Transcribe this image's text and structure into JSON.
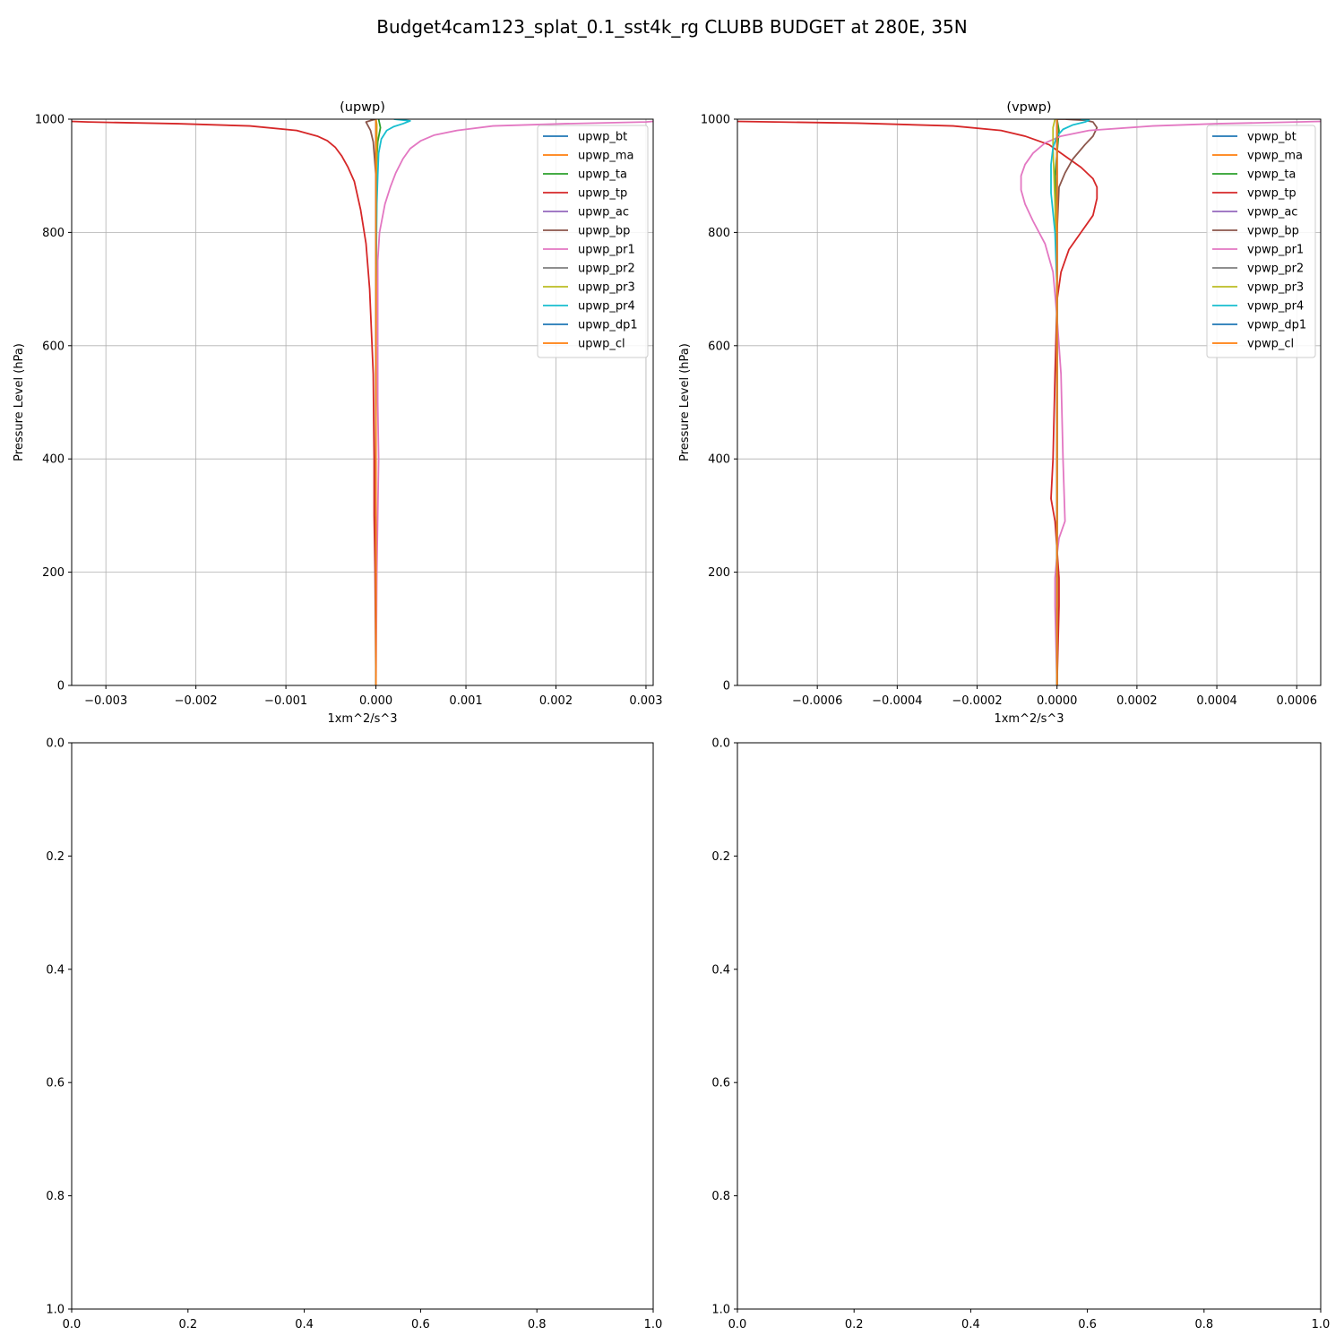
{
  "figure_title": "Budget4cam123_splat_0.1_sst4k_rg CLUBB BUDGET at 280E, 35N",
  "chart_data": [
    {
      "type": "line",
      "title": "(upwp)",
      "xlabel": "1xm^2/s^3",
      "ylabel": "Pressure Level (hPa)",
      "xlim": [
        -0.00338,
        0.00308
      ],
      "ylim": [
        1000,
        0
      ],
      "xticks": [
        -0.003,
        -0.002,
        -0.001,
        0.0,
        0.001,
        0.002,
        0.003
      ],
      "xtick_labels": [
        "−0.003",
        "−0.002",
        "−0.001",
        "0.000",
        "0.001",
        "0.002",
        "0.003"
      ],
      "yticks": [
        0,
        200,
        400,
        600,
        800,
        1000
      ],
      "ytick_labels": [
        "0",
        "200",
        "400",
        "600",
        "800",
        "1000"
      ],
      "grid": true,
      "legend_position": "top-right",
      "series": [
        {
          "name": "upwp_bt",
          "color": "#1f77b4",
          "x": [
            0,
            0,
            0,
            0
          ],
          "y": [
            0,
            500,
            900,
            1000
          ]
        },
        {
          "name": "upwp_ma",
          "color": "#ff7f0e",
          "x": [
            0,
            0,
            0,
            0
          ],
          "y": [
            0,
            500,
            900,
            1000
          ]
        },
        {
          "name": "upwp_ta",
          "color": "#2ca02c",
          "x": [
            0,
            0,
            0,
            2e-05,
            5e-05,
            3e-05
          ],
          "y": [
            0,
            600,
            900,
            960,
            985,
            1000
          ]
        },
        {
          "name": "upwp_tp",
          "color": "#d62728",
          "x": [
            0,
            -1e-05,
            -2e-05,
            -2e-05,
            -3e-05,
            -7e-05,
            -0.00011,
            -0.00017,
            -0.00024,
            -0.00031,
            -0.00038,
            -0.00045,
            -0.00054,
            -0.00065,
            -0.00088,
            -0.0014,
            -0.0022,
            -0.0032,
            -0.00338
          ],
          "y": [
            0,
            200,
            300,
            400,
            550,
            700,
            780,
            840,
            890,
            915,
            935,
            950,
            962,
            970,
            980,
            988,
            992,
            995,
            996
          ]
        },
        {
          "name": "upwp_ac",
          "color": "#9467bd",
          "x": [
            0,
            0,
            0
          ],
          "y": [
            0,
            500,
            1000
          ]
        },
        {
          "name": "upwp_bp",
          "color": "#8c564b",
          "x": [
            0,
            0,
            -3e-05,
            -6e-05,
            -0.00011,
            -5e-05,
            0
          ],
          "y": [
            0,
            900,
            960,
            980,
            995,
            998,
            1000
          ]
        },
        {
          "name": "upwp_pr1",
          "color": "#e377c2",
          "x": [
            0,
            1e-05,
            2e-05,
            3e-05,
            2e-05,
            2e-05,
            2e-05,
            4e-05,
            0.0001,
            0.00016,
            0.00022,
            0.0003,
            0.00038,
            0.0005,
            0.00065,
            0.0009,
            0.0013,
            0.0021,
            0.003,
            0.00308
          ],
          "y": [
            0,
            200,
            300,
            400,
            500,
            600,
            750,
            800,
            850,
            880,
            905,
            930,
            948,
            962,
            972,
            980,
            988,
            992,
            995,
            996
          ]
        },
        {
          "name": "upwp_pr2",
          "color": "#7f7f7f",
          "x": [
            0,
            0,
            0
          ],
          "y": [
            0,
            500,
            1000
          ]
        },
        {
          "name": "upwp_pr3",
          "color": "#bcbd22",
          "x": [
            0,
            0,
            1e-05,
            0
          ],
          "y": [
            0,
            600,
            990,
            1000
          ]
        },
        {
          "name": "upwp_pr4",
          "color": "#17becf",
          "x": [
            0,
            0,
            1e-05,
            2e-05,
            3e-05,
            6e-05,
            0.00012,
            0.0002,
            0.0003,
            0.00038,
            0.0002
          ],
          "y": [
            0,
            700,
            850,
            900,
            940,
            965,
            980,
            987,
            992,
            997,
            1000
          ]
        },
        {
          "name": "upwp_dp1",
          "color": "#1f77b4",
          "x": [
            0,
            0,
            0
          ],
          "y": [
            0,
            500,
            1000
          ]
        },
        {
          "name": "upwp_cl",
          "color": "#ff7f0e",
          "x": [
            0,
            0,
            0
          ],
          "y": [
            0,
            500,
            1000
          ]
        }
      ]
    },
    {
      "type": "line",
      "title": "(vpwp)",
      "xlabel": "1xm^2/s^3",
      "ylabel": "Pressure Level (hPa)",
      "xlim": [
        -0.0008,
        0.00066
      ],
      "ylim": [
        1000,
        0
      ],
      "xticks": [
        -0.0006,
        -0.0004,
        -0.0002,
        0.0,
        0.0002,
        0.0004,
        0.0006
      ],
      "xtick_labels": [
        "−0.0006",
        "−0.0004",
        "−0.0002",
        "0.0000",
        "0.0002",
        "0.0004",
        "0.0006"
      ],
      "yticks": [
        0,
        200,
        400,
        600,
        800,
        1000
      ],
      "ytick_labels": [
        "0",
        "200",
        "400",
        "600",
        "800",
        "1000"
      ],
      "grid": true,
      "legend_position": "top-right",
      "series": [
        {
          "name": "vpwp_bt",
          "color": "#1f77b4",
          "x": [
            0,
            0,
            0
          ],
          "y": [
            0,
            500,
            1000
          ]
        },
        {
          "name": "vpwp_ma",
          "color": "#ff7f0e",
          "x": [
            0,
            0,
            0
          ],
          "y": [
            0,
            500,
            1000
          ]
        },
        {
          "name": "vpwp_ta",
          "color": "#2ca02c",
          "x": [
            0,
            0,
            -5e-06,
            5e-06,
            0
          ],
          "y": [
            0,
            700,
            900,
            980,
            1000
          ]
        },
        {
          "name": "vpwp_tp",
          "color": "#d62728",
          "x": [
            0,
            5e-06,
            5e-06,
            0,
            -5e-06,
            -1.5e-05,
            -1e-05,
            -5e-06,
            0,
            1e-05,
            3e-05,
            6e-05,
            9e-05,
            0.0001,
            0.0001,
            9e-05,
            6e-05,
            2e-05,
            -2e-05,
            -8e-05,
            -0.00014,
            -0.00026,
            -0.0005,
            -0.0008
          ],
          "y": [
            0,
            140,
            190,
            240,
            290,
            330,
            400,
            550,
            680,
            730,
            770,
            800,
            830,
            860,
            880,
            895,
            915,
            935,
            955,
            970,
            980,
            988,
            993,
            996
          ]
        },
        {
          "name": "vpwp_ac",
          "color": "#9467bd",
          "x": [
            0,
            0,
            0
          ],
          "y": [
            0,
            500,
            1000
          ]
        },
        {
          "name": "vpwp_bp",
          "color": "#8c564b",
          "x": [
            0,
            0,
            5e-06,
            2e-05,
            4e-05,
            7e-05,
            9e-05,
            0.0001,
            9e-05,
            7e-05,
            4e-05,
            2e-05,
            0
          ],
          "y": [
            0,
            800,
            880,
            905,
            930,
            955,
            970,
            985,
            995,
            998,
            999,
            1000,
            1000
          ]
        },
        {
          "name": "vpwp_pr1",
          "color": "#e377c2",
          "x": [
            0,
            -5e-06,
            -5e-06,
            0,
            5e-06,
            2e-05,
            1.5e-05,
            1e-05,
            0,
            -1e-05,
            -3e-05,
            -6e-05,
            -8e-05,
            -9e-05,
            -9e-05,
            -8e-05,
            -6e-05,
            -3e-05,
            1e-05,
            8e-05,
            0.00024,
            0.0004,
            0.0006,
            0.00066
          ],
          "y": [
            0,
            140,
            190,
            230,
            260,
            290,
            400,
            550,
            650,
            730,
            780,
            820,
            850,
            875,
            900,
            920,
            940,
            958,
            970,
            980,
            988,
            992,
            995,
            996
          ]
        },
        {
          "name": "vpwp_pr2",
          "color": "#7f7f7f",
          "x": [
            0,
            0,
            0
          ],
          "y": [
            0,
            500,
            1000
          ]
        },
        {
          "name": "vpwp_pr3",
          "color": "#bcbd22",
          "x": [
            0,
            0,
            -5e-06,
            -1e-05,
            -1e-05,
            -5e-06
          ],
          "y": [
            0,
            700,
            850,
            950,
            985,
            1000
          ]
        },
        {
          "name": "vpwp_pr4",
          "color": "#17becf",
          "x": [
            0,
            0,
            -5e-06,
            -1.5e-05,
            -1.5e-05,
            -1e-05,
            0,
            1.5e-05,
            4e-05,
            7e-05,
            8e-05,
            6e-05
          ],
          "y": [
            0,
            700,
            800,
            870,
            920,
            950,
            970,
            982,
            990,
            995,
            998,
            1000
          ]
        },
        {
          "name": "vpwp_dp1",
          "color": "#1f77b4",
          "x": [
            0,
            0,
            0
          ],
          "y": [
            0,
            500,
            1000
          ]
        },
        {
          "name": "vpwp_cl",
          "color": "#ff7f0e",
          "x": [
            0,
            0,
            0
          ],
          "y": [
            0,
            500,
            1000
          ]
        }
      ]
    },
    {
      "type": "line",
      "title": "",
      "xlim": [
        0,
        1
      ],
      "ylim": [
        0,
        1
      ],
      "xticks": [
        0.0,
        0.2,
        0.4,
        0.6,
        0.8,
        1.0
      ],
      "xtick_labels": [
        "0.0",
        "0.2",
        "0.4",
        "0.6",
        "0.8",
        "1.0"
      ],
      "yticks": [
        0.0,
        0.2,
        0.4,
        0.6,
        0.8,
        1.0
      ],
      "ytick_labels": [
        "0.0",
        "0.2",
        "0.4",
        "0.6",
        "0.8",
        "1.0"
      ],
      "grid": false,
      "series": []
    },
    {
      "type": "line",
      "title": "",
      "xlim": [
        0,
        1
      ],
      "ylim": [
        0,
        1
      ],
      "xticks": [
        0.0,
        0.2,
        0.4,
        0.6,
        0.8,
        1.0
      ],
      "xtick_labels": [
        "0.0",
        "0.2",
        "0.4",
        "0.6",
        "0.8",
        "1.0"
      ],
      "yticks": [
        0.0,
        0.2,
        0.4,
        0.6,
        0.8,
        1.0
      ],
      "ytick_labels": [
        "0.0",
        "0.2",
        "0.4",
        "0.6",
        "0.8",
        "1.0"
      ],
      "grid": false,
      "series": []
    }
  ]
}
